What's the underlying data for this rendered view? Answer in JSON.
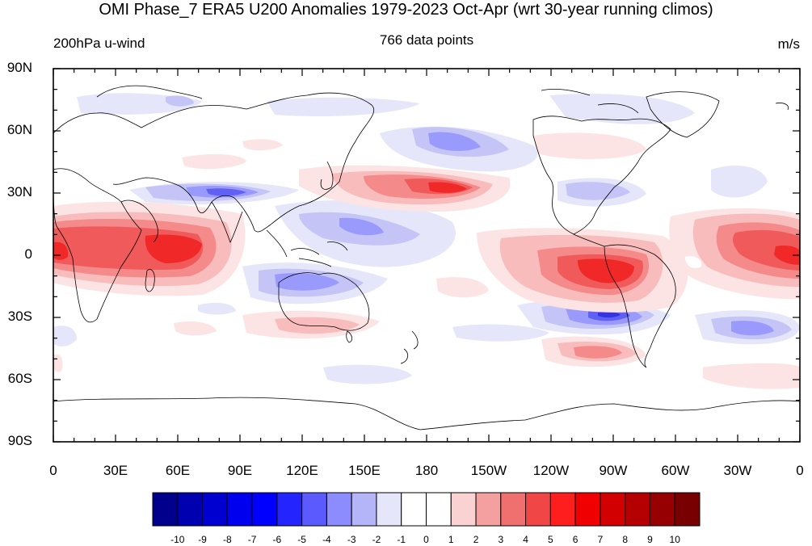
{
  "title": "OMI Phase_7 ERA5 U200 Anomalies 1979-2023 Oct-Apr (wrt 30-year running climos)",
  "left_subtitle": "200hPa u-wind",
  "center_subtitle": "766 data points",
  "right_subtitle": "m/s",
  "y_axis_labels": [
    "90N",
    "60N",
    "30N",
    "0",
    "30S",
    "60S",
    "90S"
  ],
  "x_axis_labels": [
    "0",
    "30E",
    "60E",
    "90E",
    "120E",
    "150E",
    "180",
    "150W",
    "120W",
    "90W",
    "60W",
    "30W",
    "0"
  ],
  "colorbar": {
    "labels": [
      "-10",
      "-9",
      "-8",
      "-7",
      "-6",
      "-5",
      "-4",
      "-3",
      "-2",
      "-1",
      "0",
      "1",
      "2",
      "3",
      "4",
      "5",
      "6",
      "7",
      "8",
      "9",
      "10"
    ],
    "colors": [
      "#00008c",
      "#0000b0",
      "#0000d0",
      "#0000ee",
      "#0000ff",
      "#2424ff",
      "#5a5aff",
      "#8c8cff",
      "#b4b4f8",
      "#e6e6fa",
      "#ffffff",
      "#ffffff",
      "#fad2d2",
      "#f5a0a0",
      "#f07070",
      "#f04646",
      "#ff1e1e",
      "#f00000",
      "#d20000",
      "#b40000",
      "#960000",
      "#780000"
    ]
  },
  "anomaly_colors": {
    "pos1": "#fde4e4",
    "pos2": "#f9bcbc",
    "pos3": "#f48a8a",
    "pos4": "#f05a5a",
    "pos5": "#f02828",
    "neg1": "#e6e6fa",
    "neg2": "#c4c4f6",
    "neg3": "#9a9afc",
    "neg4": "#6060f4",
    "neg5": "#3434e6"
  }
}
